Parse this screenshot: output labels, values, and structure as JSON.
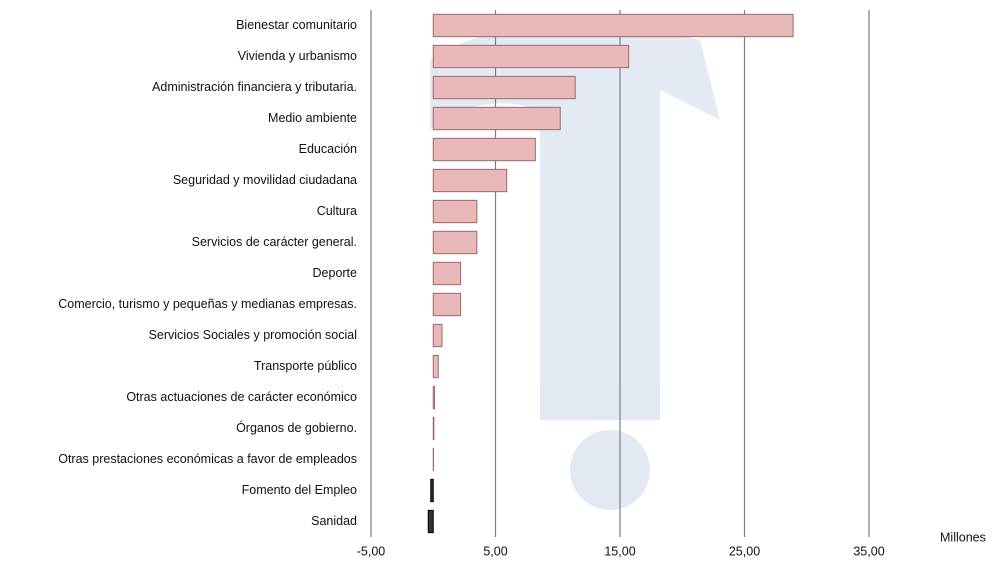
{
  "chart_data": {
    "type": "hbar",
    "categories": [
      "Bienestar comunitario",
      "Vivienda y urbanismo",
      "Administración financiera y tributaria.",
      "Medio ambiente",
      "Educación",
      "Seguridad y movilidad ciudadana",
      "Cultura",
      "Servicios de carácter general.",
      "Deporte",
      "Comercio, turismo y pequeñas y medianas empresas.",
      "Servicios Sociales y promoción social",
      "Transporte público",
      "Otras actuaciones de carácter económico",
      "Órganos de gobierno.",
      "Otras prestaciones económicas a favor de empleados",
      "Fomento del Empleo",
      "Sanidad"
    ],
    "values": [
      28.9,
      15.7,
      11.4,
      10.2,
      8.2,
      5.9,
      3.5,
      3.5,
      2.2,
      2.2,
      0.7,
      0.4,
      0.1,
      0.05,
      0.02,
      -0.2,
      -0.4
    ],
    "color": "#e9b9b9",
    "negative_color": "#333333",
    "xlim": [
      -5,
      35
    ],
    "xticks": [
      {
        "value": -5,
        "label": "-5,00"
      },
      {
        "value": 5,
        "label": "5,00"
      },
      {
        "value": 15,
        "label": "15,00"
      },
      {
        "value": 25,
        "label": "25,00"
      },
      {
        "value": 35,
        "label": "35,00"
      }
    ],
    "x_label": "Millones",
    "grid": true
  }
}
